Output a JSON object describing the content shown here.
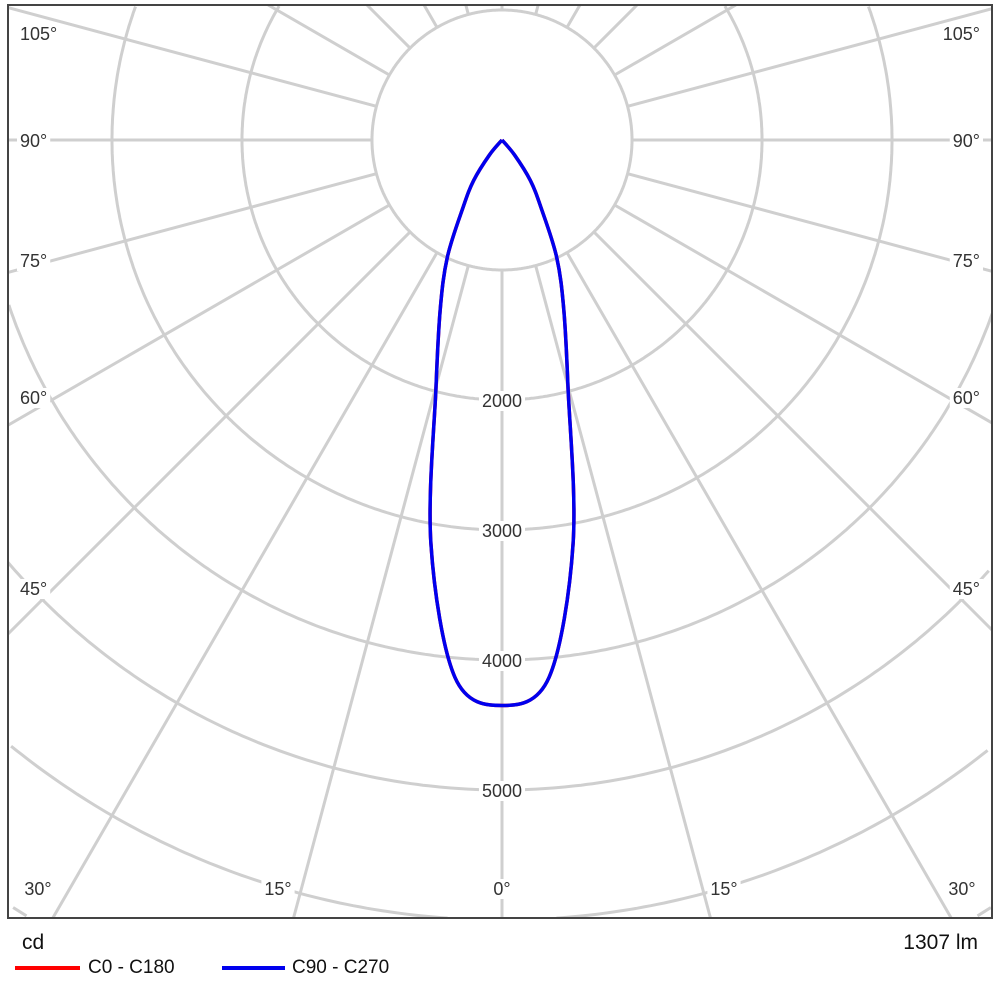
{
  "chart_data": {
    "type": "polar",
    "unit_label": "cd",
    "flux_label": "1307 lm",
    "angle_tick_labels": [
      "105°",
      "90°",
      "75°",
      "60°",
      "45°",
      "30°",
      "15°",
      "0°",
      "15°",
      "30°"
    ],
    "radial_tick_labels": [
      "2000",
      "3000",
      "4000",
      "5000"
    ],
    "radial_rings": [
      1000,
      2000,
      3000,
      4000,
      5000,
      6000,
      7000
    ],
    "angular_grid_step_deg": 15,
    "grid": true,
    "legend_position": "bottom-left",
    "angles_deg": [
      0,
      5,
      10,
      15,
      20,
      25,
      30,
      35,
      40,
      45
    ],
    "series": [
      {
        "name": "C0 - C180",
        "color": "#ff0000",
        "values": [
          4350,
          4150,
          3150,
          1960,
          1390,
          995,
          600,
          380,
          150,
          0
        ]
      },
      {
        "name": "C90 - C270",
        "color": "#0000ee",
        "values": [
          4350,
          4150,
          3150,
          1960,
          1390,
          995,
          600,
          380,
          150,
          0
        ]
      }
    ]
  }
}
